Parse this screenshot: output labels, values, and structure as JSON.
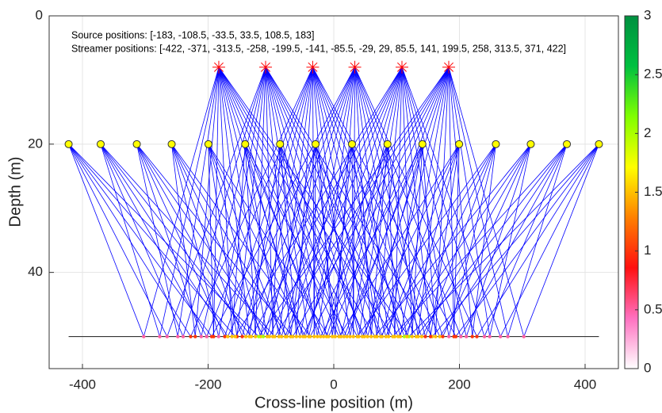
{
  "chart_data": {
    "type": "ray-diagram",
    "xlabel": "Cross-line position (m)",
    "ylabel": "Depth (m)",
    "annotations": [
      "Source positions: [-183, -108.5, -33.5, 33.5, 108.5, 183]",
      "Streamer positions: [-422, -371, -313.5, -258, -199.5, -141, -85.5, -29, 29, 85.5, 141, 199.5, 258, 313.5, 371, 422]"
    ],
    "sources": [
      -183,
      -108.5,
      -33.5,
      33.5,
      108.5,
      183
    ],
    "streamers": [
      -422,
      -371,
      -313.5,
      -258,
      -199.5,
      -141,
      -85.5,
      -29,
      29,
      85.5,
      141,
      199.5,
      258,
      313.5,
      371,
      422
    ],
    "source_depth": 8,
    "streamer_depth": 20,
    "seabed_depth": 50,
    "ray_color": "#0000ff",
    "source_color": "#ff0000",
    "streamer_color": "#ffff00",
    "xlim": [
      -453,
      453
    ],
    "ylim": [
      0,
      55
    ],
    "xticks": [
      -400,
      -200,
      0,
      200,
      400
    ],
    "yticks": [
      0,
      20,
      40
    ],
    "grid": true,
    "colorbar": {
      "lim": [
        0,
        3
      ],
      "ticks": [
        0,
        0.5,
        1,
        1.5,
        2,
        2.5,
        3
      ],
      "colors": [
        "#ffffff",
        "#ff70c0",
        "#ff1010",
        "#ff8000",
        "#ffff00",
        "#80ff00",
        "#00c040",
        "#009040"
      ]
    }
  }
}
